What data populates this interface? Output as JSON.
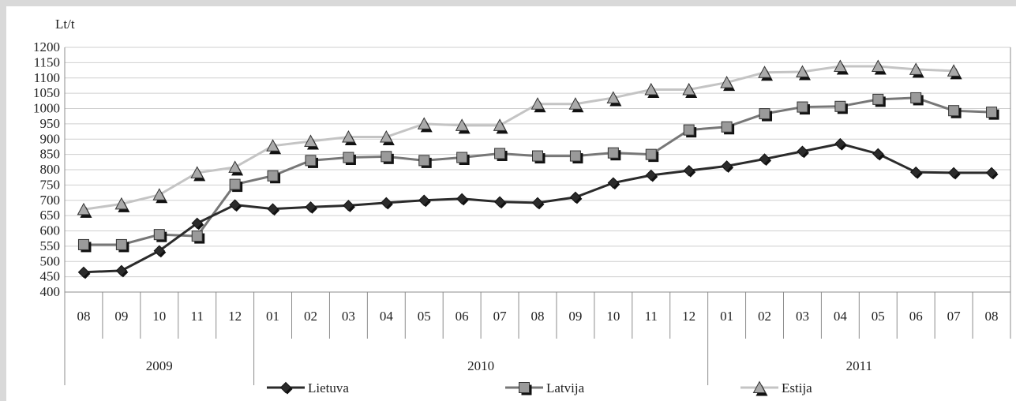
{
  "chart_data": {
    "type": "line",
    "ylabel": "Lt/t",
    "ylim": [
      400,
      1200
    ],
    "y_ticks": [
      400,
      450,
      500,
      550,
      600,
      650,
      700,
      750,
      800,
      850,
      900,
      950,
      1000,
      1050,
      1100,
      1150,
      1200
    ],
    "grid": true,
    "legend_position": "bottom",
    "categories": [
      "08",
      "09",
      "10",
      "11",
      "12",
      "01",
      "02",
      "03",
      "04",
      "05",
      "06",
      "07",
      "08",
      "09",
      "10",
      "11",
      "12",
      "01",
      "02",
      "03",
      "04",
      "05",
      "06",
      "07",
      "08"
    ],
    "year_groups": [
      {
        "label": "2009",
        "count": 5
      },
      {
        "label": "2010",
        "count": 12
      },
      {
        "label": "2011",
        "count": 8
      }
    ],
    "series": [
      {
        "name": "Lietuva",
        "marker": "diamond",
        "line_color": "#2b2b2b",
        "marker_color": "#2b2b2b",
        "values": [
          465,
          470,
          535,
          625,
          685,
          672,
          678,
          683,
          692,
          700,
          705,
          695,
          692,
          710,
          757,
          782,
          797,
          812,
          835,
          860,
          885,
          852,
          792,
          790,
          790
        ]
      },
      {
        "name": "Latvija",
        "marker": "square",
        "line_color": "#777777",
        "marker_color": "#9a9a9a",
        "values": [
          555,
          555,
          588,
          583,
          752,
          780,
          830,
          840,
          843,
          830,
          840,
          853,
          845,
          845,
          855,
          850,
          930,
          940,
          983,
          1005,
          1007,
          1030,
          1035,
          993,
          988
        ]
      },
      {
        "name": "Estija",
        "marker": "triangle",
        "line_color": "#c4c4c4",
        "marker_color": "#aaaaaa",
        "values": [
          670,
          688,
          718,
          790,
          808,
          878,
          893,
          907,
          907,
          950,
          945,
          945,
          1015,
          1015,
          1035,
          1062,
          1062,
          1085,
          1118,
          1120,
          1138,
          1138,
          1128,
          1123,
          null
        ]
      }
    ]
  }
}
